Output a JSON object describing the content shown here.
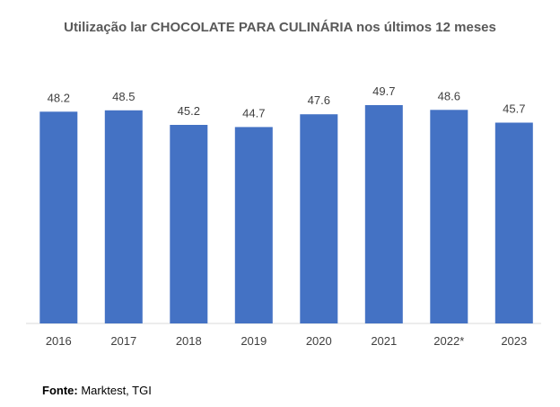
{
  "chart_data": {
    "type": "bar",
    "title": "Utilização lar CHOCOLATE PARA CULINÁRIA nos últimos 12 meses",
    "categories": [
      "2016",
      "2017",
      "2018",
      "2019",
      "2020",
      "2021",
      "2022*",
      "2023"
    ],
    "series": [
      {
        "name": "Utilização",
        "values": [
          48.2,
          48.5,
          45.2,
          44.7,
          47.6,
          49.7,
          48.6,
          45.7
        ],
        "color": "#4472C4"
      }
    ],
    "data_labels": [
      "48.2",
      "48.5",
      "45.2",
      "44.7",
      "47.6",
      "49.7",
      "48.6",
      "45.7"
    ],
    "xlabel": "",
    "ylabel": "",
    "ylim": [
      0,
      50
    ],
    "grid": false,
    "legend": "none"
  },
  "source": {
    "label": "Fonte:",
    "text": "Marktest, TGI"
  }
}
